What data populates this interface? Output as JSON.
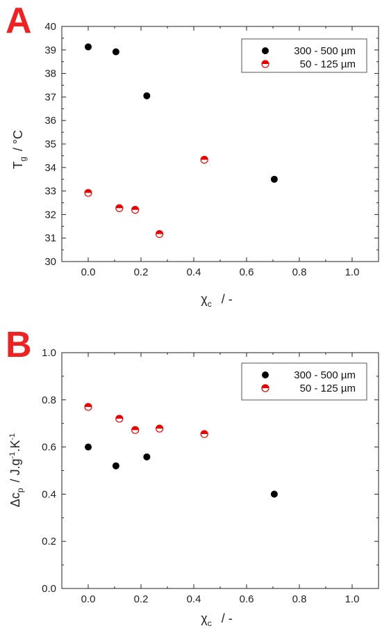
{
  "panels": [
    {
      "letter": "A",
      "y_title_main": "T",
      "y_title_sub": "g",
      "y_title_rest": "/   °C",
      "x_title_main": "χ",
      "x_title_sub": "c",
      "x_title_rest": "/   -"
    },
    {
      "letter": "B",
      "y_title_main": "Δc",
      "y_title_sub": "p",
      "y_title_rest": "/   J.g",
      "y_title_sup1": "-1",
      "y_title_mid": ".K",
      "y_title_sup2": "-1",
      "x_title_main": "χ",
      "x_title_sub": "c",
      "x_title_rest": "/   -"
    }
  ],
  "colors": {
    "black_series": "#000000",
    "red_series": "#e60000",
    "axis": "#222222"
  },
  "chart_data": [
    {
      "type": "scatter",
      "panel": "A",
      "title": "",
      "xlim": [
        -0.1,
        1.1
      ],
      "ylim": [
        30,
        40
      ],
      "xticks": [
        "0.0",
        "0.2",
        "0.4",
        "0.6",
        "0.8",
        "1.0"
      ],
      "yticks": [
        "30",
        "31",
        "32",
        "33",
        "34",
        "35",
        "36",
        "37",
        "38",
        "39",
        "40"
      ],
      "legend_position": "top-right",
      "series": [
        {
          "name": "300 - 500 µm",
          "marker": "filled-circle",
          "x": [
            0.0,
            0.105,
            0.222,
            0.705
          ],
          "y": [
            39.13,
            38.92,
            37.05,
            33.5
          ]
        },
        {
          "name": "50 - 125 µm",
          "marker": "half-filled-circle",
          "x": [
            0.0,
            0.118,
            0.178,
            0.27,
            0.44
          ],
          "y": [
            32.92,
            32.27,
            32.2,
            31.17,
            34.33
          ]
        }
      ]
    },
    {
      "type": "scatter",
      "panel": "B",
      "title": "",
      "xlim": [
        -0.1,
        1.1
      ],
      "ylim": [
        0.0,
        1.0
      ],
      "xticks": [
        "0.0",
        "0.2",
        "0.4",
        "0.6",
        "0.8",
        "1.0"
      ],
      "yticks": [
        "0.0",
        "0.2",
        "0.4",
        "0.6",
        "0.8",
        "1.0"
      ],
      "legend_position": "top-right",
      "series": [
        {
          "name": "300 - 500 µm",
          "marker": "filled-circle",
          "x": [
            0.0,
            0.105,
            0.222,
            0.705
          ],
          "y": [
            0.6,
            0.52,
            0.558,
            0.4
          ]
        },
        {
          "name": "50 - 125 µm",
          "marker": "half-filled-circle",
          "x": [
            0.0,
            0.118,
            0.178,
            0.27,
            0.44
          ],
          "y": [
            0.77,
            0.72,
            0.672,
            0.678,
            0.655
          ]
        }
      ]
    }
  ]
}
